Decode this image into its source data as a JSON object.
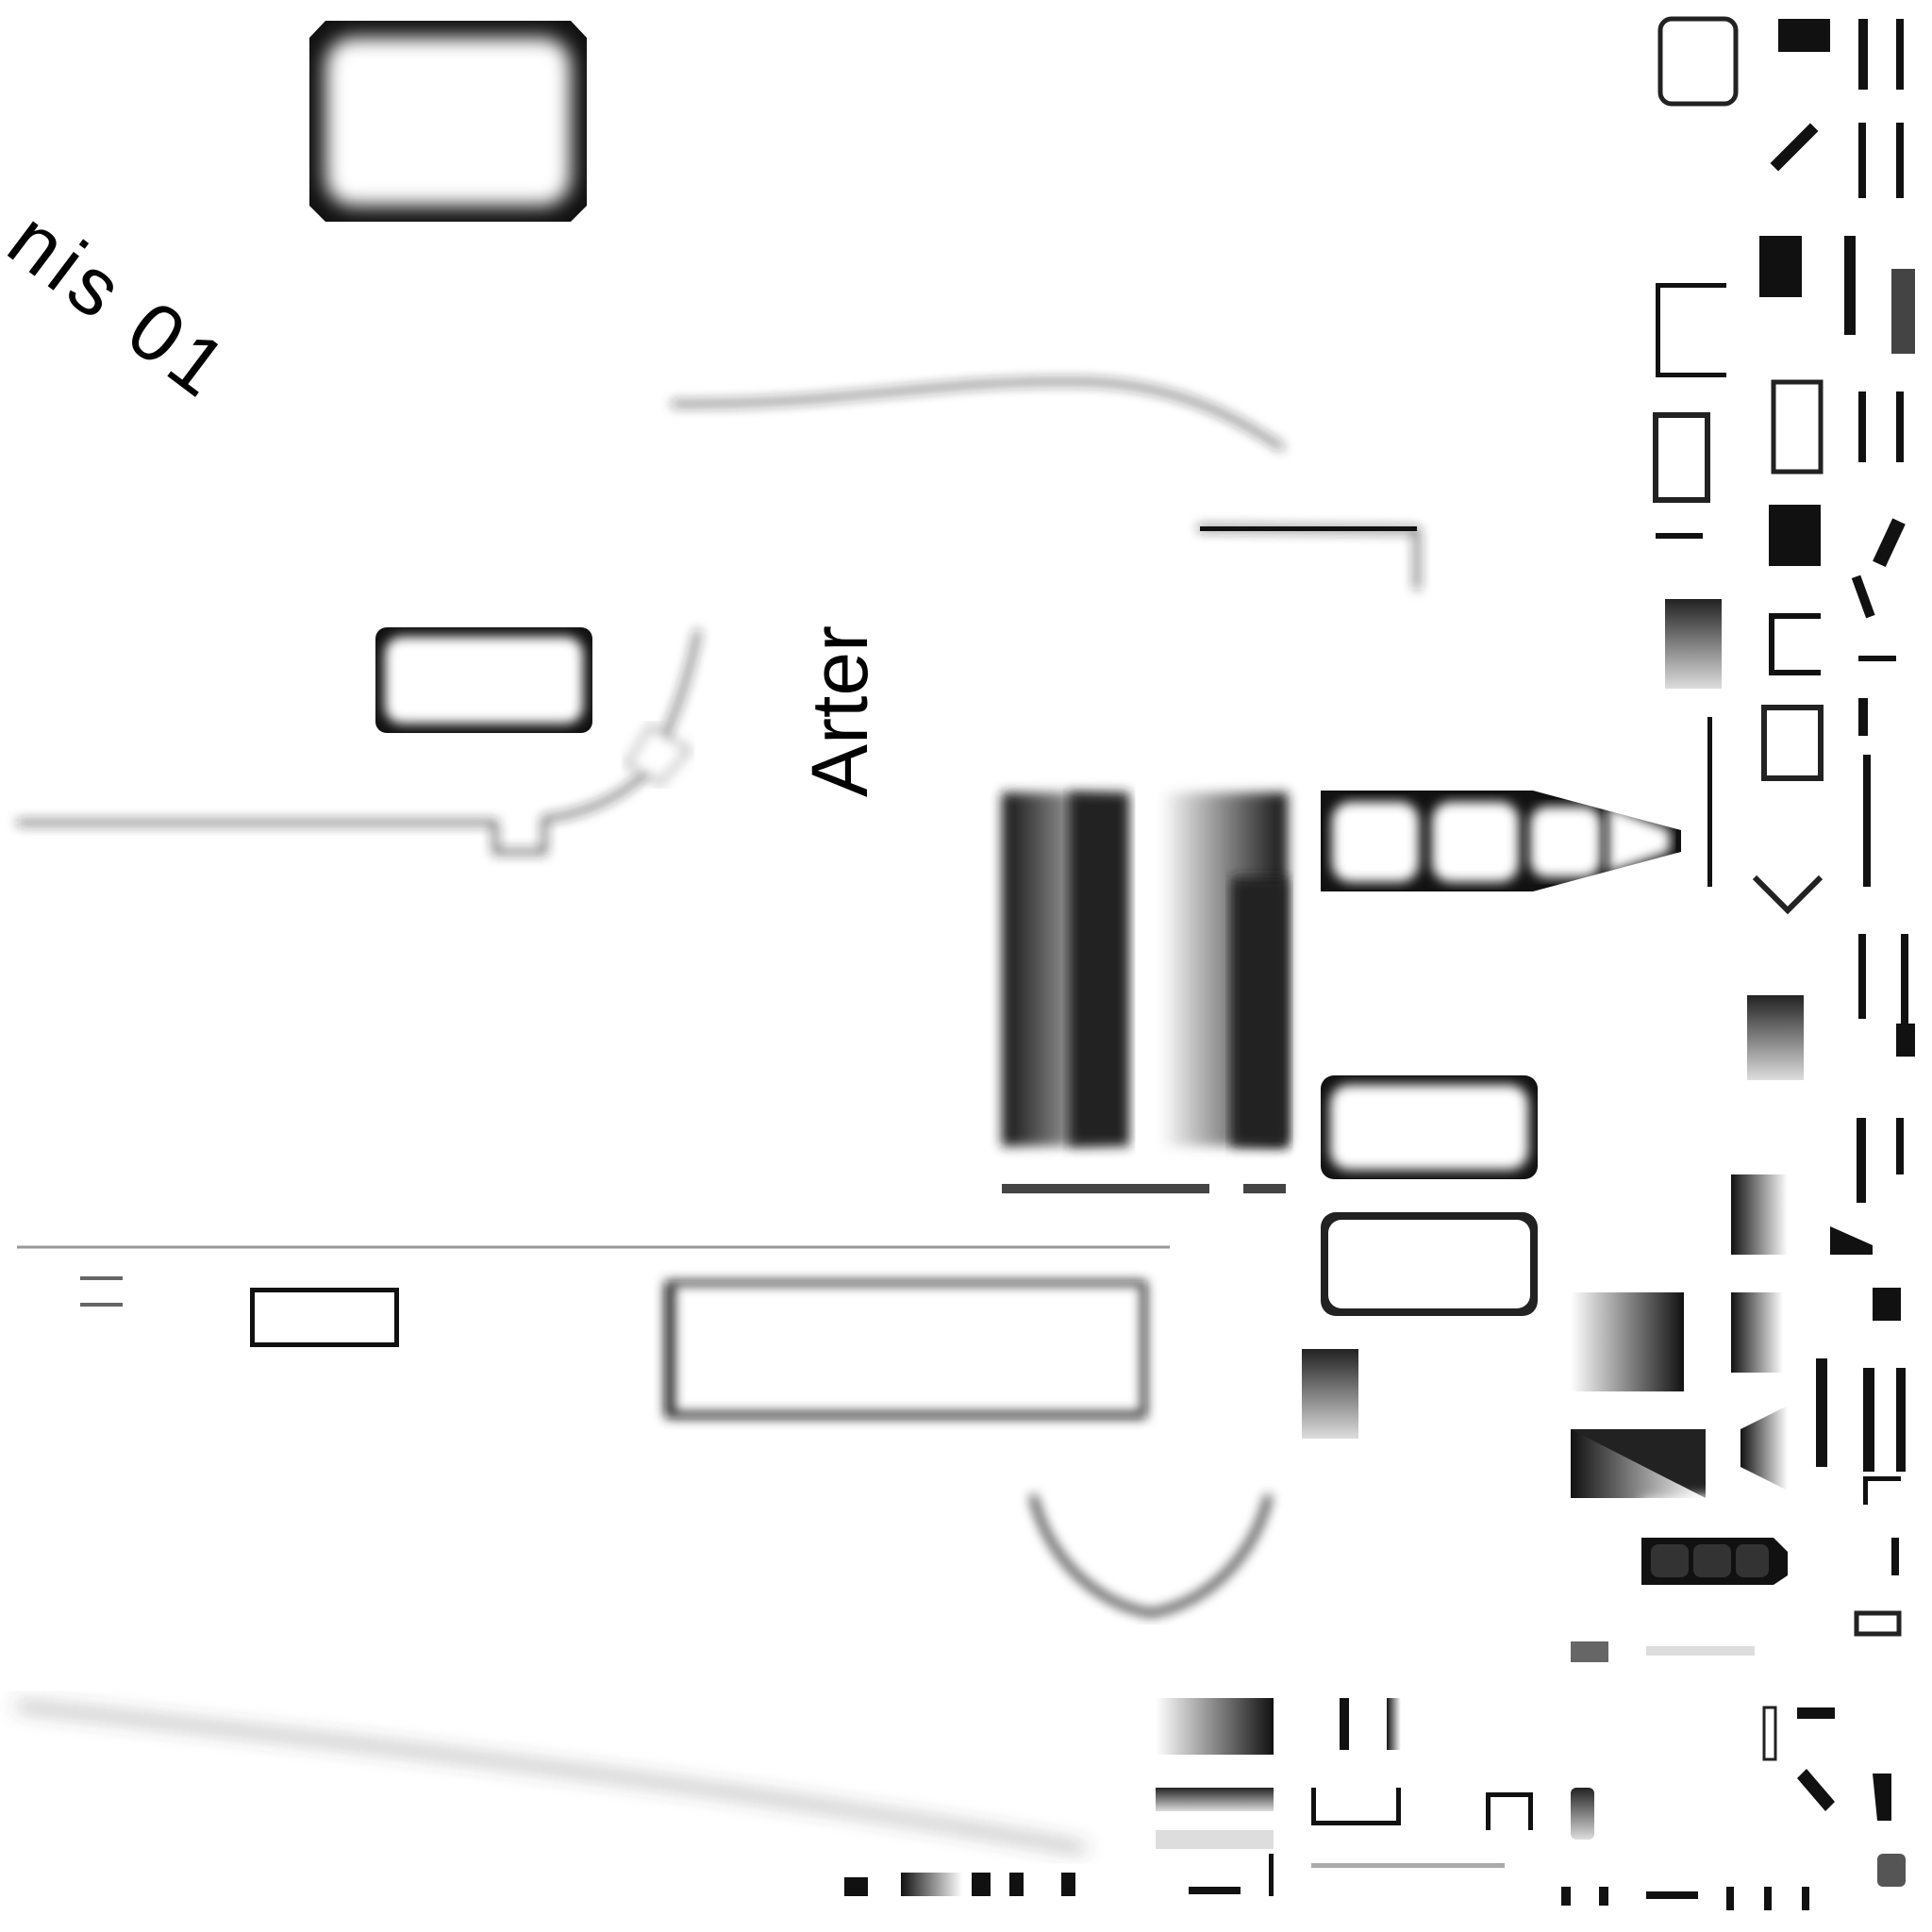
{
  "labels": {
    "tilted": "nis 01",
    "vertical": "Arter"
  },
  "colors": {
    "background": "#ffffff",
    "ink": "#000000",
    "shade_dark": "#1a1a1a",
    "shade_mid": "#555555"
  }
}
